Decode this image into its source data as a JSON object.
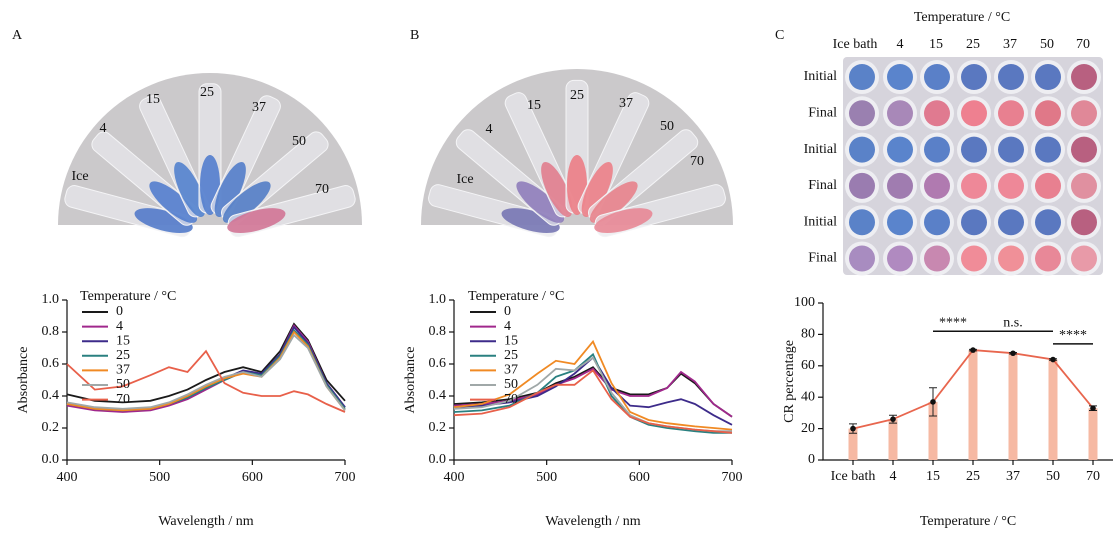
{
  "panel_labels": [
    "A",
    "B",
    "C"
  ],
  "photos": [
    {
      "tube_labels": [
        "Ice",
        "4",
        "15",
        "25",
        "37",
        "50",
        "70"
      ],
      "tube_colors": [
        "#4a74c8",
        "#4a78cc",
        "#4a7ccc",
        "#4a78cc",
        "#4a78c8",
        "#4a78c4",
        "#d06e90"
      ]
    },
    {
      "tube_labels": [
        "Ice",
        "4",
        "15",
        "25",
        "37",
        "50",
        "70"
      ],
      "tube_colors": [
        "#7070b0",
        "#8a78b8",
        "#e07888",
        "#ec7880",
        "#ec7a82",
        "#e87c86",
        "#e88290"
      ]
    }
  ],
  "plate": {
    "title": "Temperature / °C",
    "columns": [
      "Ice bath",
      "4",
      "15",
      "25",
      "37",
      "50",
      "70"
    ],
    "rows": [
      {
        "label": "Initial",
        "colors": [
          "#5a82c8",
          "#5a84cc",
          "#5a80c8",
          "#5a78c0",
          "#5a78c0",
          "#5a78c0",
          "#b86080"
        ]
      },
      {
        "label": "Final",
        "colors": [
          "#9a80b0",
          "#a888b8",
          "#e07a90",
          "#ee8090",
          "#e88090",
          "#e07888",
          "#e08898"
        ]
      },
      {
        "label": "Initial",
        "colors": [
          "#5a82c8",
          "#5a84cc",
          "#5a80c8",
          "#5a78c0",
          "#5a78c0",
          "#5a78c0",
          "#b86080"
        ]
      },
      {
        "label": "Final",
        "colors": [
          "#9a7cb0",
          "#a07cb0",
          "#b07ab0",
          "#ee8898",
          "#ee8898",
          "#e88090",
          "#e090a0"
        ]
      },
      {
        "label": "Initial",
        "colors": [
          "#5a82c8",
          "#5a84cc",
          "#5a80c8",
          "#5a78c0",
          "#5a78c0",
          "#5a78c0",
          "#b86080"
        ]
      },
      {
        "label": "Final",
        "colors": [
          "#a88cc0",
          "#b08ac0",
          "#c888b0",
          "#f08c98",
          "#f09098",
          "#e88898",
          "#e89aa8"
        ]
      }
    ]
  },
  "chart_data": [
    {
      "type": "line",
      "xlabel": "Wavelength / nm",
      "ylabel": "Absorbance",
      "legend_title": "Temperature / °C",
      "x": [
        400,
        430,
        460,
        490,
        510,
        530,
        550,
        570,
        590,
        610,
        630,
        645,
        660,
        680,
        700
      ],
      "xlim": [
        400,
        700
      ],
      "xticks": [
        400,
        500,
        600,
        700
      ],
      "ylim": [
        0,
        1
      ],
      "yticks": [
        {
          "value": 0,
          "label": "0.0"
        },
        0.2,
        0.4,
        0.6,
        0.8,
        {
          "value": 1,
          "label": "1.0"
        }
      ],
      "series": [
        {
          "name": "0",
          "color": "#1a1a1a",
          "values": [
            0.41,
            0.37,
            0.36,
            0.37,
            0.4,
            0.44,
            0.5,
            0.55,
            0.58,
            0.55,
            0.68,
            0.85,
            0.75,
            0.5,
            0.37
          ]
        },
        {
          "name": "4",
          "color": "#a0288c",
          "values": [
            0.34,
            0.31,
            0.3,
            0.31,
            0.34,
            0.38,
            0.44,
            0.5,
            0.55,
            0.53,
            0.66,
            0.84,
            0.74,
            0.48,
            0.33
          ]
        },
        {
          "name": "15",
          "color": "#3d2b8a",
          "values": [
            0.35,
            0.32,
            0.31,
            0.32,
            0.35,
            0.39,
            0.45,
            0.51,
            0.56,
            0.54,
            0.66,
            0.83,
            0.73,
            0.48,
            0.33
          ]
        },
        {
          "name": "25",
          "color": "#2a8080",
          "values": [
            0.35,
            0.32,
            0.31,
            0.32,
            0.35,
            0.39,
            0.45,
            0.5,
            0.55,
            0.53,
            0.65,
            0.81,
            0.72,
            0.47,
            0.32
          ]
        },
        {
          "name": "37",
          "color": "#f08a24",
          "values": [
            0.35,
            0.32,
            0.31,
            0.32,
            0.35,
            0.4,
            0.46,
            0.51,
            0.54,
            0.52,
            0.64,
            0.8,
            0.71,
            0.46,
            0.31
          ]
        },
        {
          "name": "50",
          "color": "#a0a8a8",
          "values": [
            0.36,
            0.33,
            0.32,
            0.33,
            0.36,
            0.41,
            0.47,
            0.52,
            0.55,
            0.52,
            0.63,
            0.78,
            0.7,
            0.46,
            0.31
          ]
        },
        {
          "name": "70",
          "color": "#e8604a",
          "values": [
            0.6,
            0.44,
            0.46,
            0.53,
            0.58,
            0.55,
            0.68,
            0.48,
            0.42,
            0.4,
            0.4,
            0.43,
            0.41,
            0.35,
            0.3
          ]
        }
      ]
    },
    {
      "type": "line",
      "xlabel": "Wavelength / nm",
      "ylabel": "Absorbance",
      "legend_title": "Temperature / °C",
      "x": [
        400,
        430,
        460,
        490,
        510,
        530,
        550,
        570,
        590,
        610,
        630,
        645,
        660,
        680,
        700
      ],
      "xlim": [
        400,
        700
      ],
      "xticks": [
        400,
        500,
        600,
        700
      ],
      "ylim": [
        0,
        1
      ],
      "yticks": [
        {
          "value": 0,
          "label": "0.0"
        },
        0.2,
        0.4,
        0.6,
        0.8,
        {
          "value": 1,
          "label": "1.0"
        }
      ],
      "series": [
        {
          "name": "0",
          "color": "#1a1a1a",
          "values": [
            0.35,
            0.36,
            0.38,
            0.42,
            0.48,
            0.52,
            0.58,
            0.45,
            0.41,
            0.41,
            0.45,
            0.54,
            0.48,
            0.35,
            0.27
          ]
        },
        {
          "name": "4",
          "color": "#a0288c",
          "values": [
            0.34,
            0.35,
            0.37,
            0.41,
            0.47,
            0.51,
            0.57,
            0.44,
            0.4,
            0.4,
            0.45,
            0.55,
            0.49,
            0.35,
            0.27
          ]
        },
        {
          "name": "15",
          "color": "#3d2b8a",
          "values": [
            0.33,
            0.34,
            0.36,
            0.4,
            0.46,
            0.54,
            0.64,
            0.45,
            0.34,
            0.33,
            0.36,
            0.38,
            0.35,
            0.28,
            0.22
          ]
        },
        {
          "name": "25",
          "color": "#2a8080",
          "values": [
            0.3,
            0.31,
            0.34,
            0.42,
            0.52,
            0.56,
            0.66,
            0.4,
            0.27,
            0.22,
            0.2,
            0.19,
            0.18,
            0.17,
            0.17
          ]
        },
        {
          "name": "37",
          "color": "#f08a24",
          "values": [
            0.33,
            0.35,
            0.41,
            0.54,
            0.62,
            0.6,
            0.74,
            0.48,
            0.3,
            0.25,
            0.23,
            0.22,
            0.21,
            0.2,
            0.19
          ]
        },
        {
          "name": "50",
          "color": "#a0a8a8",
          "values": [
            0.32,
            0.33,
            0.37,
            0.47,
            0.57,
            0.56,
            0.64,
            0.42,
            0.28,
            0.23,
            0.21,
            0.2,
            0.19,
            0.18,
            0.18
          ]
        },
        {
          "name": "70",
          "color": "#e8604a",
          "values": [
            0.28,
            0.29,
            0.33,
            0.42,
            0.47,
            0.47,
            0.56,
            0.38,
            0.27,
            0.23,
            0.21,
            0.2,
            0.19,
            0.18,
            0.17
          ]
        }
      ]
    },
    {
      "type": "bar",
      "xlabel": "Temperature / °C",
      "ylabel": "CR percentage",
      "categories": [
        "Ice bath",
        "4",
        "15",
        "25",
        "37",
        "50",
        "70"
      ],
      "values": [
        20,
        26,
        37,
        70,
        68,
        64,
        33
      ],
      "errors": [
        3,
        2.5,
        9,
        0.5,
        0.5,
        0.5,
        1.5
      ],
      "color": "#f6b9a3",
      "line_color": "#e8664e",
      "ylim": [
        0,
        100
      ],
      "yticks": [
        0,
        20,
        40,
        60,
        80,
        100
      ],
      "annotations": [
        {
          "text": "****",
          "from": "15",
          "to": "25",
          "y": 82
        },
        {
          "text": "n.s.",
          "from": "25",
          "to": "50",
          "y": 82
        },
        {
          "text": "****",
          "from": "50",
          "to": "70",
          "y": 74
        }
      ]
    }
  ]
}
